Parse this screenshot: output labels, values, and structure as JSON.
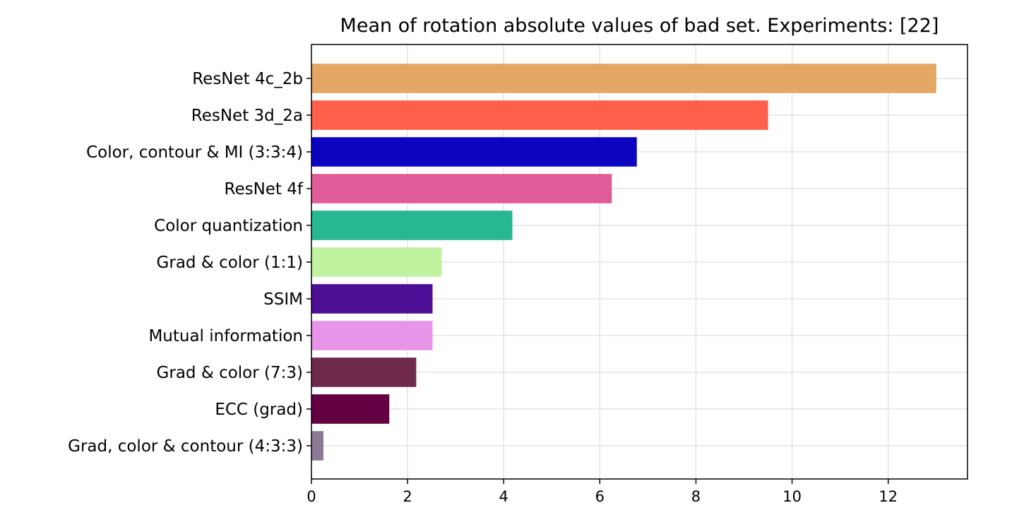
{
  "chart_data": {
    "type": "bar",
    "orientation": "horizontal",
    "title": "Mean of rotation absolute values of bad set. Experiments: [22]",
    "xlabel": "",
    "ylabel": "",
    "categories": [
      "ResNet 4c_2b",
      "ResNet 3d_2a",
      "Color, contour & MI (3:3:4)",
      "ResNet 4f",
      "Color quantization",
      "Grad & color (1:1)",
      "SSIM",
      "Mutual information",
      "Grad & color (7:3)",
      "ECC (grad)",
      "Grad, color & contour (4:3:3)"
    ],
    "values": [
      13.0,
      9.5,
      6.77,
      6.25,
      4.18,
      2.71,
      2.52,
      2.52,
      2.18,
      1.62,
      0.25
    ],
    "colors": [
      "#e3a664",
      "#fd5f4a",
      "#0b05c2",
      "#e05c98",
      "#25b891",
      "#c0f29f",
      "#4e0e95",
      "#e695e8",
      "#6e2a4b",
      "#620042",
      "#8a7a96"
    ],
    "xlim": [
      0,
      13.65
    ],
    "xticks": [
      "0",
      "2",
      "4",
      "6",
      "8",
      "10",
      "12"
    ],
    "grid": true,
    "legend": "none"
  }
}
